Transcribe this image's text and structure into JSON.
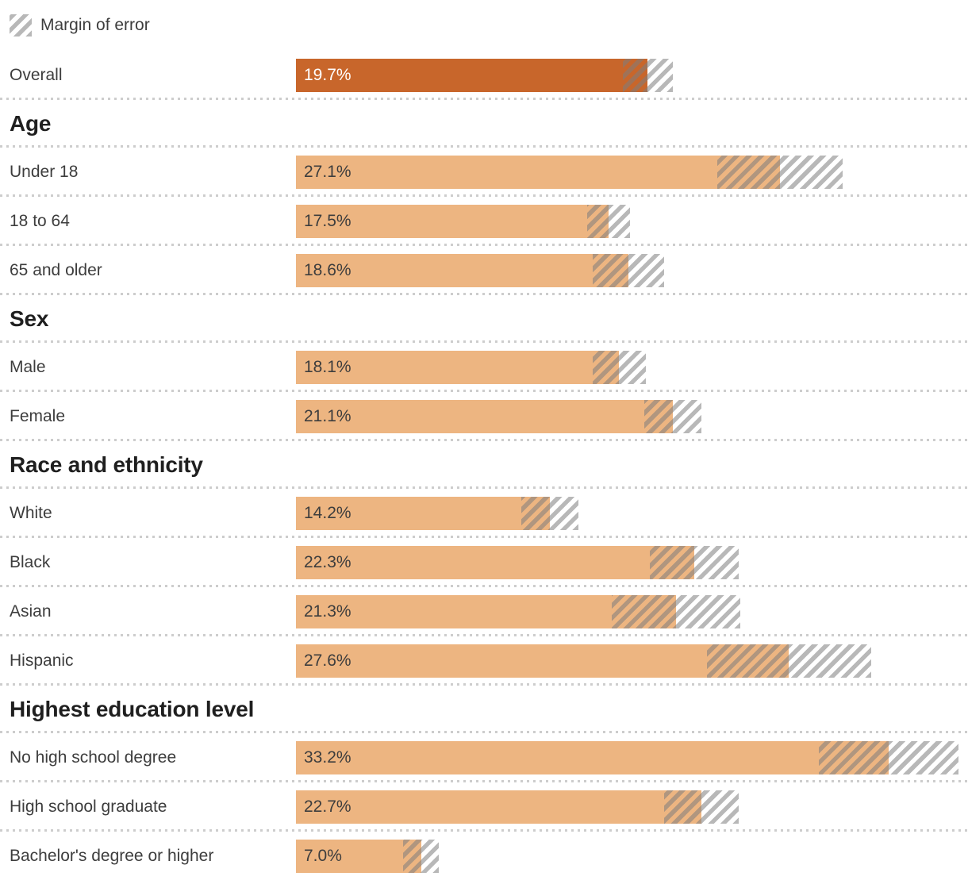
{
  "colors": {
    "bar": "#edb581",
    "bar_emphasis": "#c8662b",
    "value_on_bar": "#3d3d3d",
    "value_on_emphasis": "#ffffff",
    "hatch_stripe": "rgba(125,125,125,0.55)",
    "label_text": "#3d3d3d",
    "heading_text": "#1f1f1f",
    "separator": "#cdcdcd"
  },
  "chart_data": {
    "type": "bar",
    "legend": "Margin of error",
    "unit": "percent",
    "value_suffix": "%",
    "xlim": [
      0,
      37.6
    ],
    "groups": [
      {
        "heading": "",
        "rows": [
          {
            "label": "Overall",
            "value": 19.7,
            "display": "19.7%",
            "moe": 1.4,
            "emphasis": true
          }
        ]
      },
      {
        "heading": "Age",
        "rows": [
          {
            "label": "Under 18",
            "value": 27.1,
            "display": "27.1%",
            "moe": 3.5,
            "emphasis": false
          },
          {
            "label": "18 to 64",
            "value": 17.5,
            "display": "17.5%",
            "moe": 1.2,
            "emphasis": false
          },
          {
            "label": "65 and older",
            "value": 18.6,
            "display": "18.6%",
            "moe": 2.0,
            "emphasis": false
          }
        ]
      },
      {
        "heading": "Sex",
        "rows": [
          {
            "label": "Male",
            "value": 18.1,
            "display": "18.1%",
            "moe": 1.5,
            "emphasis": false
          },
          {
            "label": "Female",
            "value": 21.1,
            "display": "21.1%",
            "moe": 1.6,
            "emphasis": false
          }
        ]
      },
      {
        "heading": "Race and ethnicity",
        "rows": [
          {
            "label": "White",
            "value": 14.2,
            "display": "14.2%",
            "moe": 1.6,
            "emphasis": false
          },
          {
            "label": "Black",
            "value": 22.3,
            "display": "22.3%",
            "moe": 2.5,
            "emphasis": false
          },
          {
            "label": "Asian",
            "value": 21.3,
            "display": "21.3%",
            "moe": 3.6,
            "emphasis": false
          },
          {
            "label": "Hispanic",
            "value": 27.6,
            "display": "27.6%",
            "moe": 4.6,
            "emphasis": false
          }
        ]
      },
      {
        "heading": "Highest education level",
        "rows": [
          {
            "label": "No high school degree",
            "value": 33.2,
            "display": "33.2%",
            "moe": 3.9,
            "emphasis": false
          },
          {
            "label": "High school graduate",
            "value": 22.7,
            "display": "22.7%",
            "moe": 2.1,
            "emphasis": false
          },
          {
            "label": "Bachelor's degree or higher",
            "value": 7.0,
            "display": "7.0%",
            "moe": 1.0,
            "emphasis": false
          }
        ]
      }
    ]
  }
}
